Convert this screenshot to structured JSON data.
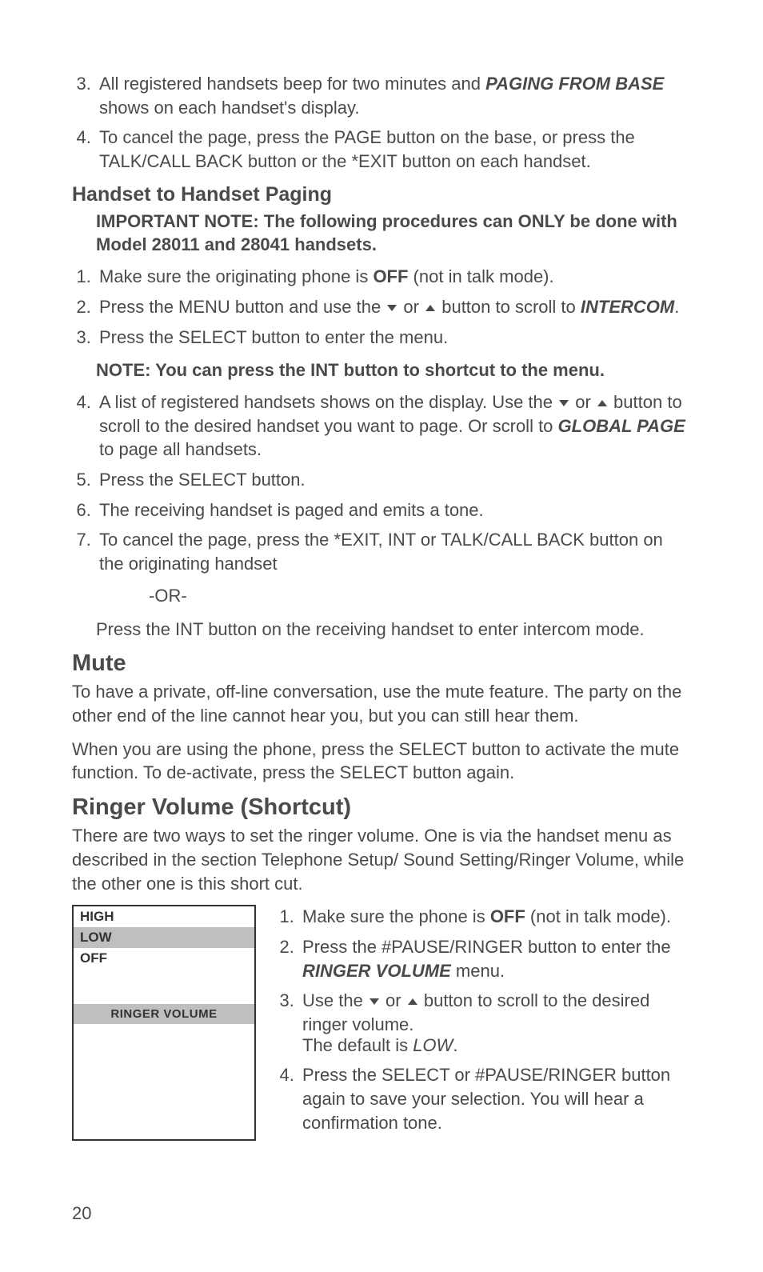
{
  "topList": {
    "start": 3,
    "item3_a": "All registered handsets beep for two minutes and ",
    "item3_b": "PAGING FROM BASE",
    "item3_c": " shows on each handset's display.",
    "item4": "To cancel the page, press the PAGE button on the base, or press the TALK/CALL BACK button or the *EXIT button on each handset."
  },
  "section1": {
    "heading": "Handset to Handset Paging",
    "note": "IMPORTANT NOTE: The following procedures can ONLY be done with Model 28011 and 28041 handsets.",
    "li1_a": "Make sure the originating phone is ",
    "li1_b": "OFF",
    "li1_c": " (not in talk mode).",
    "li2_a": "Press the MENU button and use the ",
    "li2_b": " or ",
    "li2_c": " button to scroll to ",
    "li2_d": "INTERCOM",
    "li2_e": ".",
    "li3": "Press the SELECT button to enter the menu.",
    "note2": "NOTE: You can press the INT button to shortcut to the menu.",
    "li4_a": "A list of registered handsets shows on the display. Use the ",
    "li4_b": " or ",
    "li4_c": " button to scroll to the desired handset you want to page. Or scroll to ",
    "li4_d": "GLOBAL PAGE",
    "li4_e": " to page all handsets.",
    "li5": "Press the SELECT button.",
    "li6": "The receiving handset is paged and emits a tone.",
    "li7": "To cancel the page, press the *EXIT, INT or TALK/CALL BACK button on the originating handset",
    "or": "-OR-",
    "li7_cont": "Press the INT button on the receiving handset to enter intercom mode."
  },
  "mute": {
    "heading": "Mute",
    "p1": "To have a private, off-line conversation, use the mute feature. The party on the other end of the line cannot hear you, but you can still hear them.",
    "p2": "When you are using the phone, press the SELECT button to activate the mute function. To de-activate, press the SELECT button again."
  },
  "ringer": {
    "heading": "Ringer Volume (Shortcut)",
    "intro": "There are two ways to set the ringer volume. One is via the handset menu as described in the section Telephone Setup/ Sound Setting/Ringer Volume, while the other one is this short cut.",
    "menu": {
      "row1": "HIGH",
      "row2": "LOW",
      "row3": "OFF",
      "title": "RINGER VOLUME"
    },
    "li1_a": "Make sure the phone is ",
    "li1_b": "OFF",
    "li1_c": " (not in talk mode).",
    "li2_a": "Press the #PAUSE/RINGER button to enter the ",
    "li2_b": "RINGER VOLUME",
    "li2_c": " menu.",
    "li3_a": "Use the ",
    "li3_b": " or ",
    "li3_c": " button to scroll to the desired ringer volume.",
    "li3_sub_a": "The default is ",
    "li3_sub_b": "LOW",
    "li3_sub_c": ".",
    "li4": "Press the SELECT or #PAUSE/RINGER button again to save your selection. You will hear a confirmation tone."
  },
  "pageNumber": "20"
}
